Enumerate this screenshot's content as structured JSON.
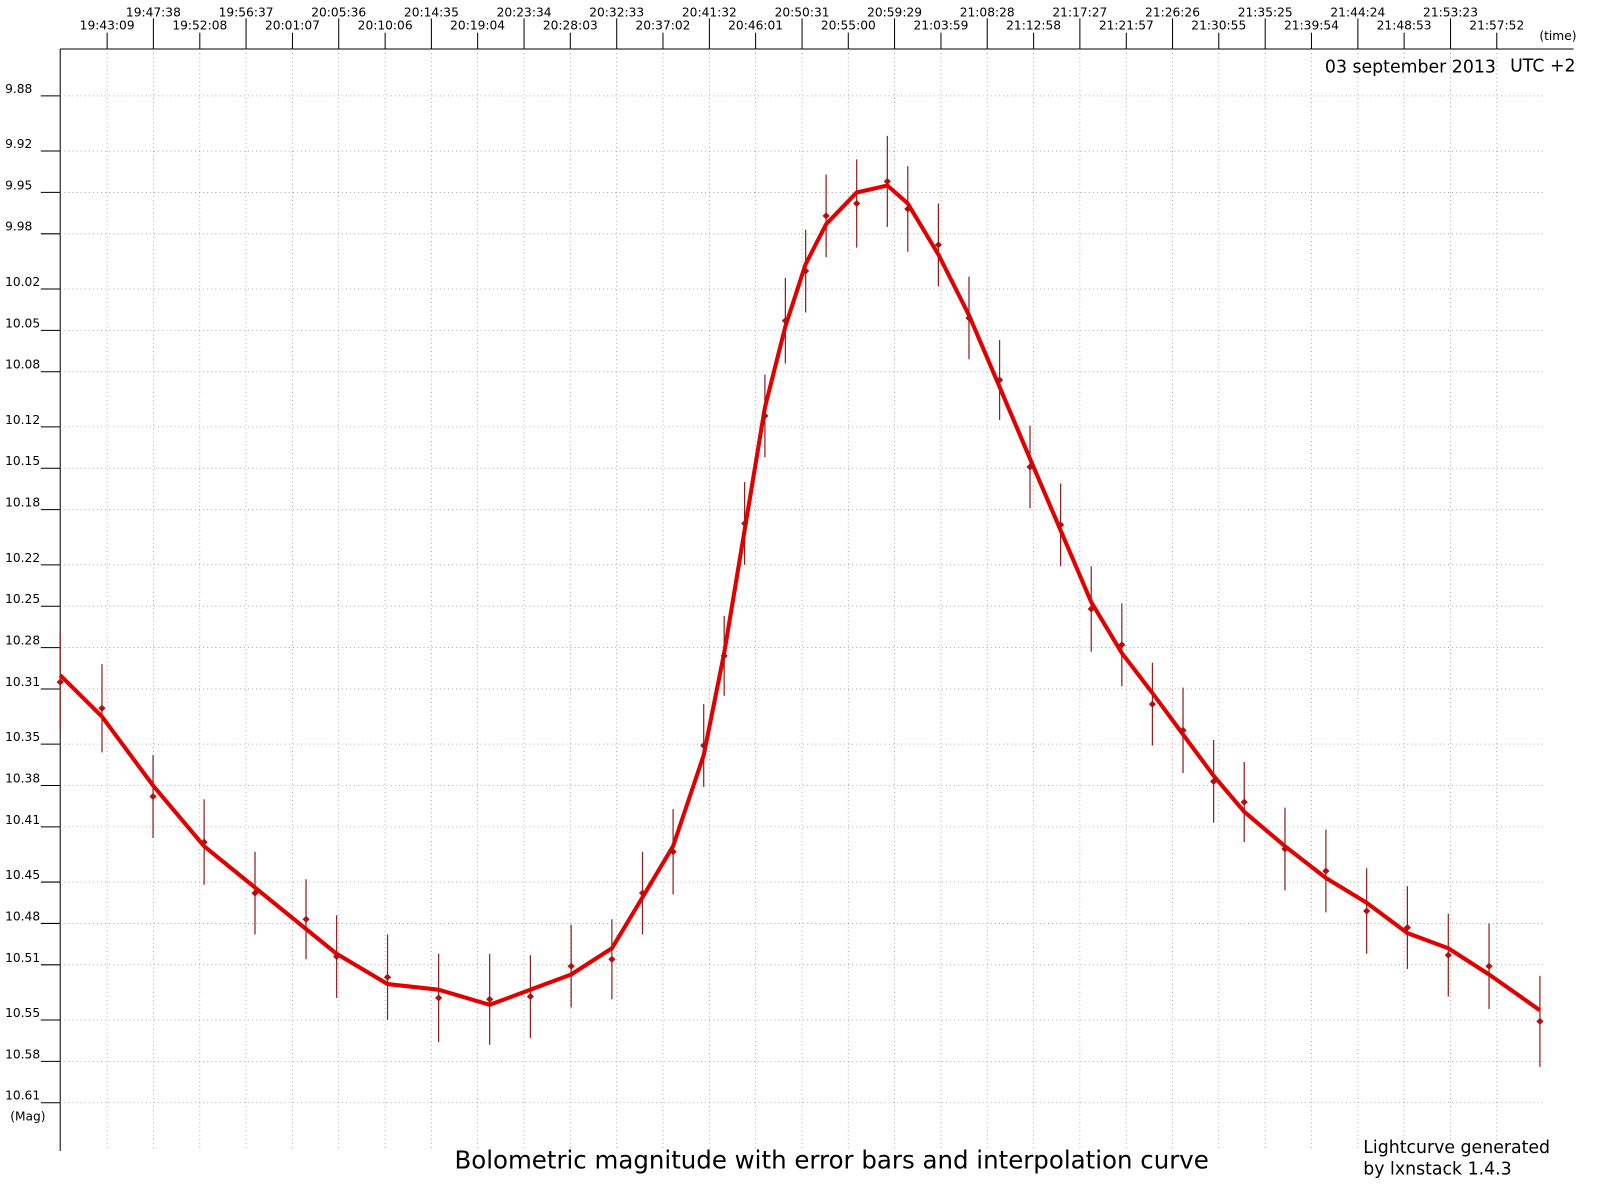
{
  "chart_data": {
    "type": "lightcurve",
    "title": "Bolometric  magnitude with error bars and interpolation curve",
    "date_label": "03 september 2013",
    "timezone_label": "UTC +2",
    "x_unit_label": "(time)",
    "y_unit_label": "(Mag)",
    "footer_lines": [
      "Lightcurve generated",
      "by lxnstack 1.4.3"
    ],
    "xlim": [
      "19:38:36",
      "22:02:20"
    ],
    "xticks": [
      "19:43:09",
      "19:47:38",
      "19:52:08",
      "19:56:37",
      "20:01:07",
      "20:05:36",
      "20:10:06",
      "20:14:35",
      "20:19:04",
      "20:23:34",
      "20:28:03",
      "20:32:33",
      "20:37:02",
      "20:41:32",
      "20:46:01",
      "20:50:31",
      "20:55:00",
      "20:59:29",
      "21:03:59",
      "21:08:28",
      "21:12:58",
      "21:17:27",
      "21:21:57",
      "21:26:26",
      "21:30:55",
      "21:35:25",
      "21:39:54",
      "21:44:24",
      "21:48:53",
      "21:53:23",
      "21:57:52"
    ],
    "ylim": [
      10.645,
      9.846
    ],
    "yticks": [
      9.88,
      9.92,
      9.95,
      9.98,
      10.02,
      10.05,
      10.08,
      10.12,
      10.15,
      10.18,
      10.22,
      10.25,
      10.28,
      10.31,
      10.35,
      10.38,
      10.41,
      10.45,
      10.48,
      10.51,
      10.55,
      10.58,
      10.61
    ],
    "grid": true,
    "x": [
      "19:38:36",
      "19:42:39",
      "19:47:36",
      "19:52:33",
      "19:57:29",
      "20:02:26",
      "20:05:24",
      "20:10:20",
      "20:15:17",
      "20:20:14",
      "20:24:11",
      "20:28:08",
      "20:32:05",
      "20:35:03",
      "20:38:01",
      "20:40:59",
      "20:42:58",
      "20:44:57",
      "20:46:55",
      "20:48:54",
      "20:50:52",
      "20:52:51",
      "20:55:49",
      "20:58:47",
      "21:00:46",
      "21:03:44",
      "21:06:42",
      "21:09:40",
      "21:12:37",
      "21:15:35",
      "21:18:33",
      "21:21:31",
      "21:24:29",
      "21:27:27",
      "21:30:25",
      "21:33:23",
      "21:37:20",
      "21:41:18",
      "21:45:15",
      "21:49:12",
      "21:53:10",
      "21:57:07",
      "22:02:03"
    ],
    "values": [
      10.305,
      10.324,
      10.388,
      10.421,
      10.458,
      10.477,
      10.504,
      10.519,
      10.534,
      10.535,
      10.533,
      10.511,
      10.506,
      10.458,
      10.428,
      10.351,
      10.286,
      10.19,
      10.112,
      10.043,
      10.007,
      9.967,
      9.958,
      9.942,
      9.962,
      9.988,
      10.041,
      10.086,
      10.149,
      10.191,
      10.252,
      10.278,
      10.321,
      10.34,
      10.377,
      10.392,
      10.426,
      10.442,
      10.471,
      10.483,
      10.503,
      10.511,
      10.551
    ],
    "errors": [
      0.035,
      0.032,
      0.03,
      0.031,
      0.03,
      0.029,
      0.03,
      0.031,
      0.032,
      0.033,
      0.03,
      0.03,
      0.029,
      0.03,
      0.031,
      0.03,
      0.029,
      0.03,
      0.03,
      0.031,
      0.03,
      0.03,
      0.032,
      0.033,
      0.031,
      0.03,
      0.03,
      0.029,
      0.03,
      0.03,
      0.031,
      0.03,
      0.03,
      0.031,
      0.03,
      0.029,
      0.03,
      0.03,
      0.031,
      0.03,
      0.03,
      0.031,
      0.033
    ],
    "curve_values": [
      10.3,
      10.33,
      10.38,
      10.424,
      10.454,
      10.484,
      10.502,
      10.524,
      10.528,
      10.539,
      10.528,
      10.517,
      10.498,
      10.461,
      10.424,
      10.358,
      10.284,
      10.195,
      10.106,
      10.047,
      10.002,
      9.973,
      9.95,
      9.945,
      9.958,
      9.995,
      10.039,
      10.091,
      10.143,
      10.195,
      10.247,
      10.284,
      10.313,
      10.343,
      10.373,
      10.399,
      10.424,
      10.447,
      10.465,
      10.487,
      10.498,
      10.517,
      10.543
    ],
    "point_color": "#b01010",
    "error_color": "#8b2020",
    "curve_color": "#e00000"
  }
}
